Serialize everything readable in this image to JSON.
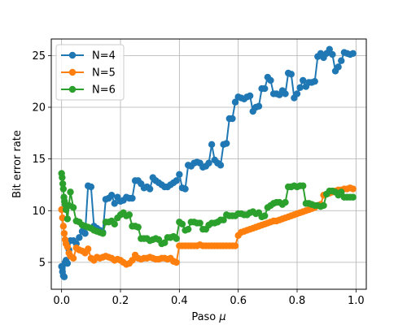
{
  "chart_data": {
    "type": "line",
    "title": "",
    "xlabel": "Paso",
    "xlabel_symbol": "μ",
    "ylabel": "Bit error rate",
    "xlim": [
      -0.035,
      1.035
    ],
    "ylim": [
      2.4,
      26.6
    ],
    "xticks": [
      0.0,
      0.2,
      0.4,
      0.6,
      0.8,
      1.0
    ],
    "xtick_labels": [
      "0.0",
      "0.2",
      "0.4",
      "0.6",
      "0.8",
      "1.0"
    ],
    "yticks": [
      5,
      10,
      15,
      20,
      25
    ],
    "ytick_labels": [
      "5",
      "10",
      "15",
      "20",
      "25"
    ],
    "grid": true,
    "legend_position": "top-left",
    "series": [
      {
        "name": "N=4",
        "color": "#1f77b4",
        "x": [
          0.0,
          0.003,
          0.006,
          0.009,
          0.012,
          0.015,
          0.02,
          0.025,
          0.03,
          0.04,
          0.05,
          0.06,
          0.07,
          0.08,
          0.09,
          0.1,
          0.11,
          0.12,
          0.13,
          0.14,
          0.15,
          0.16,
          0.17,
          0.18,
          0.19,
          0.2,
          0.21,
          0.22,
          0.23,
          0.24,
          0.25,
          0.26,
          0.27,
          0.28,
          0.29,
          0.3,
          0.31,
          0.32,
          0.33,
          0.34,
          0.35,
          0.36,
          0.37,
          0.38,
          0.39,
          0.4,
          0.41,
          0.42,
          0.43,
          0.44,
          0.45,
          0.46,
          0.47,
          0.48,
          0.49,
          0.5,
          0.51,
          0.52,
          0.53,
          0.54,
          0.55,
          0.56,
          0.57,
          0.58,
          0.59,
          0.6,
          0.61,
          0.62,
          0.63,
          0.64,
          0.65,
          0.66,
          0.67,
          0.68,
          0.69,
          0.7,
          0.71,
          0.72,
          0.73,
          0.74,
          0.75,
          0.76,
          0.77,
          0.78,
          0.79,
          0.8,
          0.81,
          0.82,
          0.83,
          0.84,
          0.85,
          0.86,
          0.87,
          0.88,
          0.89,
          0.9,
          0.91,
          0.92,
          0.93,
          0.94,
          0.95,
          0.96,
          0.97,
          0.98,
          0.99
        ],
        "values": [
          4.6,
          4.1,
          3.7,
          3.6,
          5.0,
          5.2,
          4.9,
          6.2,
          7.1,
          7.1,
          6.8,
          7.4,
          8.0,
          7.8,
          12.4,
          12.3,
          8.5,
          8.3,
          8.1,
          7.9,
          11.1,
          11.2,
          11.5,
          10.7,
          11.3,
          10.9,
          11.0,
          11.3,
          11.2,
          11.2,
          12.9,
          12.9,
          12.6,
          12.2,
          12.3,
          12.1,
          13.2,
          12.9,
          12.7,
          12.5,
          12.3,
          12.3,
          12.5,
          12.7,
          12.9,
          13.5,
          12.2,
          12.1,
          14.4,
          14.3,
          14.6,
          14.7,
          14.6,
          14.2,
          14.3,
          14.6,
          16.4,
          14.9,
          14.6,
          14.4,
          16.4,
          16.5,
          18.9,
          18.9,
          20.5,
          21.0,
          20.9,
          20.8,
          21.0,
          21.1,
          19.6,
          20.0,
          20.1,
          21.8,
          21.8,
          22.9,
          22.6,
          21.3,
          21.3,
          21.2,
          21.6,
          21.3,
          23.3,
          23.2,
          20.9,
          21.3,
          21.9,
          22.6,
          22.0,
          22.4,
          22.4,
          22.5,
          24.9,
          25.2,
          24.8,
          25.2,
          25.6,
          25.1,
          23.5,
          23.9,
          24.5,
          25.3,
          25.2,
          25.1,
          25.2
        ],
        "values_note": ""
      },
      {
        "name": "N=5",
        "color": "#ff7f0e",
        "x": [
          0.0,
          0.003,
          0.006,
          0.009,
          0.012,
          0.015,
          0.02,
          0.025,
          0.03,
          0.04,
          0.05,
          0.06,
          0.07,
          0.08,
          0.09,
          0.1,
          0.11,
          0.12,
          0.13,
          0.14,
          0.15,
          0.16,
          0.17,
          0.18,
          0.19,
          0.2,
          0.21,
          0.22,
          0.23,
          0.24,
          0.25,
          0.26,
          0.27,
          0.28,
          0.29,
          0.3,
          0.31,
          0.32,
          0.33,
          0.34,
          0.35,
          0.36,
          0.37,
          0.38,
          0.39,
          0.4,
          0.41,
          0.42,
          0.43,
          0.44,
          0.45,
          0.46,
          0.47,
          0.48,
          0.49,
          0.5,
          0.51,
          0.52,
          0.53,
          0.54,
          0.55,
          0.56,
          0.57,
          0.58,
          0.59,
          0.6,
          0.61,
          0.62,
          0.63,
          0.64,
          0.65,
          0.66,
          0.67,
          0.68,
          0.69,
          0.7,
          0.71,
          0.72,
          0.73,
          0.74,
          0.75,
          0.76,
          0.77,
          0.78,
          0.79,
          0.8,
          0.81,
          0.82,
          0.83,
          0.84,
          0.85,
          0.86,
          0.87,
          0.88,
          0.89,
          0.9,
          0.91,
          0.92,
          0.93,
          0.94,
          0.95,
          0.96,
          0.97,
          0.98,
          0.99
        ],
        "values": [
          10.1,
          9.3,
          8.5,
          7.8,
          7.2,
          6.8,
          6.5,
          5.9,
          5.6,
          5.4,
          6.4,
          6.2,
          6.1,
          5.9,
          6.3,
          5.4,
          5.2,
          5.5,
          5.4,
          5.5,
          5.6,
          5.5,
          5.4,
          5.2,
          5.3,
          5.2,
          5.0,
          4.8,
          4.9,
          5.2,
          5.7,
          5.4,
          5.3,
          5.4,
          5.4,
          5.5,
          5.4,
          5.3,
          5.3,
          5.4,
          5.4,
          5.3,
          5.4,
          5.1,
          5.0,
          6.6,
          6.6,
          6.6,
          6.6,
          6.6,
          6.6,
          6.6,
          6.7,
          6.6,
          6.6,
          6.6,
          6.6,
          6.6,
          6.6,
          6.6,
          6.6,
          6.6,
          6.6,
          6.6,
          6.6,
          7.6,
          7.9,
          8.0,
          8.1,
          8.2,
          8.3,
          8.4,
          8.5,
          8.6,
          8.7,
          8.8,
          8.9,
          9.0,
          9.0,
          9.1,
          9.2,
          9.3,
          9.4,
          9.5,
          9.6,
          9.7,
          9.8,
          9.9,
          10.0,
          10.1,
          10.2,
          10.3,
          10.5,
          10.6,
          11.5,
          11.6,
          11.7,
          11.8,
          11.9,
          12.0,
          12.0,
          12.1,
          12.1,
          12.2,
          12.1
        ],
        "values_note": ""
      },
      {
        "name": "N=6",
        "color": "#2ca02c",
        "x": [
          0.0,
          0.002,
          0.004,
          0.006,
          0.008,
          0.01,
          0.012,
          0.015,
          0.02,
          0.025,
          0.03,
          0.04,
          0.05,
          0.06,
          0.07,
          0.08,
          0.09,
          0.1,
          0.11,
          0.12,
          0.13,
          0.14,
          0.15,
          0.16,
          0.17,
          0.18,
          0.19,
          0.2,
          0.21,
          0.22,
          0.23,
          0.24,
          0.25,
          0.26,
          0.27,
          0.28,
          0.29,
          0.3,
          0.31,
          0.32,
          0.33,
          0.34,
          0.35,
          0.36,
          0.37,
          0.38,
          0.39,
          0.4,
          0.41,
          0.42,
          0.43,
          0.44,
          0.45,
          0.46,
          0.47,
          0.48,
          0.49,
          0.5,
          0.51,
          0.52,
          0.53,
          0.54,
          0.55,
          0.56,
          0.57,
          0.58,
          0.59,
          0.6,
          0.61,
          0.62,
          0.63,
          0.64,
          0.65,
          0.66,
          0.67,
          0.68,
          0.69,
          0.7,
          0.71,
          0.72,
          0.73,
          0.74,
          0.75,
          0.76,
          0.77,
          0.78,
          0.79,
          0.8,
          0.81,
          0.82,
          0.83,
          0.84,
          0.85,
          0.86,
          0.87,
          0.88,
          0.89,
          0.9,
          0.91,
          0.92,
          0.93,
          0.94,
          0.95,
          0.96,
          0.97,
          0.98,
          0.99
        ],
        "values": [
          13.6,
          13.2,
          12.6,
          12.1,
          11.3,
          10.9,
          10.6,
          10.1,
          9.2,
          10.5,
          11.8,
          10.3,
          9.0,
          8.9,
          8.6,
          8.5,
          8.4,
          8.3,
          8.1,
          8.0,
          7.9,
          7.8,
          8.9,
          8.9,
          9.0,
          8.7,
          9.3,
          9.6,
          9.8,
          9.5,
          9.6,
          8.5,
          8.5,
          8.4,
          7.3,
          7.3,
          7.3,
          7.1,
          7.2,
          7.3,
          7.2,
          6.8,
          6.9,
          7.4,
          7.4,
          7.5,
          7.3,
          8.9,
          8.7,
          8.1,
          8.2,
          8.9,
          8.9,
          8.8,
          8.8,
          8.2,
          8.2,
          8.6,
          8.8,
          8.8,
          8.9,
          9.1,
          9.1,
          9.6,
          9.5,
          9.5,
          9.5,
          9.7,
          9.7,
          9.6,
          9.6,
          9.8,
          9.9,
          9.7,
          9.8,
          9.4,
          9.5,
          10.3,
          10.5,
          10.7,
          10.8,
          10.8,
          10.6,
          10.8,
          12.3,
          12.3,
          12.4,
          12.3,
          12.4,
          12.4,
          10.7,
          10.7,
          10.6,
          10.5,
          10.5,
          10.4,
          10.5,
          11.6,
          11.9,
          11.9,
          11.8,
          11.5,
          11.8,
          11.3,
          11.3,
          11.3,
          11.3
        ],
        "values_note": ""
      }
    ]
  }
}
